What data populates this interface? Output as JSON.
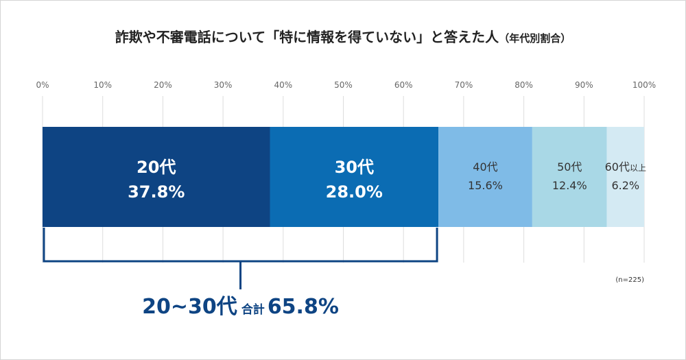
{
  "chart_data": {
    "type": "bar",
    "orientation": "horizontal-stacked",
    "title_main": "詐欺や不審電話について「特に情報を得ていない」と答えた人",
    "title_sub": "（年代別割合）",
    "axis_ticks": [
      "0%",
      "10%",
      "20%",
      "30%",
      "40%",
      "50%",
      "60%",
      "70%",
      "80%",
      "90%",
      "100%"
    ],
    "xlim": [
      0,
      100
    ],
    "grid": true,
    "segments": [
      {
        "age": "20代",
        "suffix": "",
        "value": 37.8,
        "value_label": "37.8%",
        "color": "#0e4483",
        "text_color": "#ffffff",
        "bold": true
      },
      {
        "age": "30代",
        "suffix": "",
        "value": 28.0,
        "value_label": "28.0%",
        "color": "#0b6cb3",
        "text_color": "#ffffff",
        "bold": true
      },
      {
        "age": "40代",
        "suffix": "",
        "value": 15.6,
        "value_label": "15.6%",
        "color": "#7fbbe7",
        "text_color": "#333333",
        "bold": false
      },
      {
        "age": "50代",
        "suffix": "",
        "value": 12.4,
        "value_label": "12.4%",
        "color": "#a9d8e6",
        "text_color": "#333333",
        "bold": false
      },
      {
        "age": "60代",
        "suffix": "以上",
        "value": 6.2,
        "value_label": "6.2%",
        "color": "#d4eaf3",
        "text_color": "#333333",
        "bold": false
      }
    ],
    "bracket": {
      "from": 0,
      "to": 65.8,
      "label_main": "20~30代",
      "label_small": "合計",
      "label_value": "65.8%",
      "color": "#0e4483"
    },
    "sample_note": "(n=225)",
    "colors": {
      "grid": "#dddddd",
      "tick_text": "#666666",
      "title_text": "#222222"
    }
  }
}
